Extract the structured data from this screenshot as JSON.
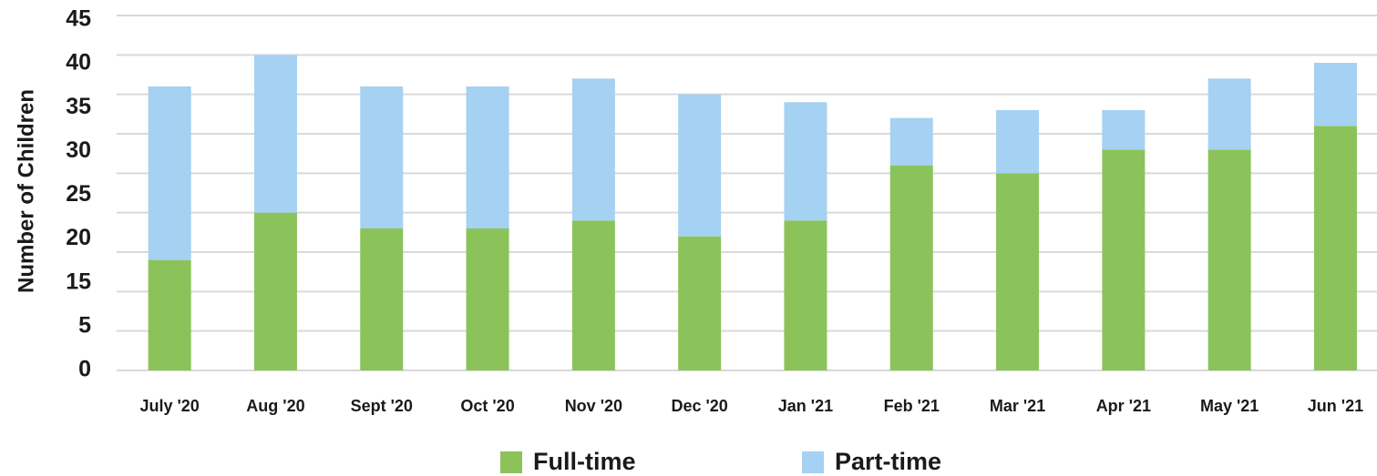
{
  "chart_data": {
    "type": "stacked_bar",
    "y_label": "Number of Children",
    "categories": [
      "July '20",
      "Aug '20",
      "Sept '20",
      "Oct '20",
      "Nov '20",
      "Dec '20",
      "Jan '21",
      "Feb '21",
      "Mar '21",
      "Apr '21",
      "May '21",
      "Jun '21"
    ],
    "series": [
      {
        "name": "Full-time",
        "color": "#8bc35a",
        "values": [
          14,
          20,
          18,
          18,
          19,
          17,
          19,
          26,
          25,
          28,
          28,
          31
        ]
      },
      {
        "name": "Part-time",
        "color": "#a5d1f2",
        "values": [
          22,
          20,
          18,
          18,
          18,
          18,
          15,
          6,
          8,
          5,
          9,
          8
        ]
      }
    ],
    "ylim": [
      0,
      45
    ],
    "yticks": [
      0,
      5,
      15,
      20,
      25,
      30,
      35,
      40,
      45
    ],
    "ygrid": [
      0,
      5,
      10,
      15,
      20,
      25,
      30,
      35,
      40,
      45
    ],
    "grid": true,
    "legend": "bottom"
  }
}
